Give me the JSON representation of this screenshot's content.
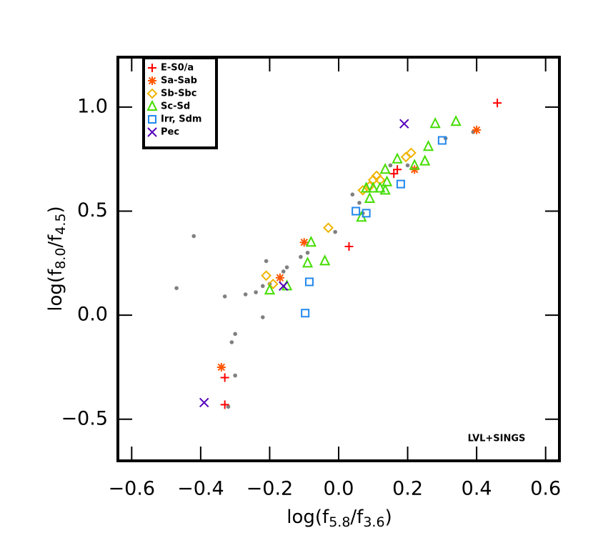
{
  "chart_data": {
    "type": "scatter",
    "xlabel": [
      "log(f",
      "5.8",
      "/f",
      "3.6",
      ")"
    ],
    "ylabel": [
      "log(f",
      "8.0",
      "/f",
      "4.5",
      ")"
    ],
    "annotation": "LVL+SINGS",
    "xlim": [
      -0.64,
      0.64
    ],
    "ylim": [
      -0.7,
      1.24
    ],
    "xticks": [
      {
        "value": -0.6,
        "label": "−0.6"
      },
      {
        "value": -0.4,
        "label": "−0.4"
      },
      {
        "value": -0.2,
        "label": "−0.2"
      },
      {
        "value": 0,
        "label": "0.0"
      },
      {
        "value": 0.2,
        "label": "0.2"
      },
      {
        "value": 0.4,
        "label": "0.4"
      },
      {
        "value": 0.6,
        "label": "0.6"
      }
    ],
    "yticks": [
      {
        "value": -0.5,
        "label": "−0.5"
      },
      {
        "value": 0,
        "label": "0.0"
      },
      {
        "value": 0.5,
        "label": "0.5"
      },
      {
        "value": 1,
        "label": "1.0"
      }
    ],
    "legend": "upper left",
    "series": [
      {
        "color": "#808080",
        "marker": "dot",
        "x": [
          -0.42,
          -0.47,
          -0.27,
          -0.24,
          -0.22,
          -0.2,
          -0.21,
          -0.16,
          -0.15,
          -0.11,
          -0.09,
          -0.22,
          -0.33,
          -0.3,
          -0.31,
          -0.3,
          -0.32,
          -0.01,
          0.04,
          0.06,
          0.07,
          0.15,
          0.2,
          0.31,
          0.39
        ],
        "y": [
          0.38,
          0.13,
          0.1,
          0.11,
          0.14,
          0.15,
          0.26,
          0.21,
          0.23,
          0.28,
          0.3,
          -0.01,
          0.09,
          -0.09,
          -0.13,
          -0.29,
          -0.44,
          0.4,
          0.58,
          0.54,
          0.49,
          0.72,
          0.72,
          0.85,
          0.88
        ]
      },
      {
        "name": "E-S0/a",
        "color": "#ff0000",
        "marker": "plus",
        "x": [
          0.46,
          0.17,
          0.16,
          0.03,
          -0.33,
          -0.33
        ],
        "y": [
          1.02,
          0.7,
          0.68,
          0.33,
          -0.3,
          -0.43
        ]
      },
      {
        "name": "Sa-Sab",
        "color": "#ff5500",
        "marker": "asterisk",
        "x": [
          0.4,
          0.22,
          -0.1,
          -0.17,
          -0.34
        ],
        "y": [
          0.89,
          0.7,
          0.35,
          0.18,
          -0.25
        ]
      },
      {
        "name": "Sb-Sbc",
        "color": "#f0b400",
        "marker": "diamond",
        "x": [
          0.21,
          0.195,
          0.12,
          0.11,
          0.1,
          0.09,
          0.07,
          -0.03,
          -0.21,
          -0.19
        ],
        "y": [
          0.78,
          0.76,
          0.65,
          0.67,
          0.65,
          0.62,
          0.6,
          0.42,
          0.19,
          0.15
        ]
      },
      {
        "name": "Sc-Sd",
        "color": "#44dd00",
        "marker": "triangle",
        "x": [
          0.34,
          0.28,
          0.26,
          0.25,
          0.22,
          0.17,
          0.135,
          0.14,
          0.135,
          0.12,
          0.1,
          0.08,
          0.09,
          0.066,
          -0.04,
          -0.08,
          -0.09,
          -0.15,
          -0.2
        ],
        "y": [
          0.93,
          0.92,
          0.81,
          0.74,
          0.72,
          0.75,
          0.7,
          0.64,
          0.6,
          0.61,
          0.61,
          0.61,
          0.56,
          0.47,
          0.26,
          0.35,
          0.25,
          0.14,
          0.12
        ]
      },
      {
        "name": "Irr, Sdm",
        "color": "#2288ee",
        "marker": "square",
        "x": [
          0.3,
          0.18,
          0.05,
          0.08,
          -0.085,
          -0.097
        ],
        "y": [
          0.84,
          0.63,
          0.5,
          0.49,
          0.16,
          0.01
        ]
      },
      {
        "name": "Pec",
        "color": "#5500bb",
        "marker": "x",
        "x": [
          0.19,
          -0.16,
          -0.39
        ],
        "y": [
          0.92,
          0.14,
          -0.42
        ]
      }
    ]
  }
}
